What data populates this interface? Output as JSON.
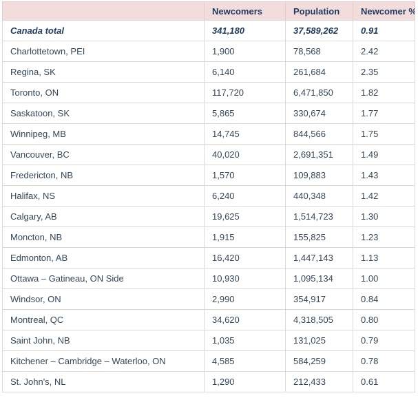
{
  "colors": {
    "header_bg": "#f3dcdc",
    "header_text": "#1e3a5f",
    "body_text": "#33475b",
    "total_row_text": "#1e3a5f",
    "border": "#d9d9d9",
    "row_bg": "#ffffff"
  },
  "chart_data": {
    "type": "table",
    "title": "",
    "columns": [
      "",
      "Newcomers",
      "Population",
      "Newcomer %"
    ],
    "rows": [
      {
        "cells": [
          "Canada total",
          "341,180",
          "37,589,262",
          "0.91"
        ],
        "emphasis": true
      },
      {
        "cells": [
          "Charlottetown, PEI",
          "1,900",
          "78,568",
          "2.42"
        ],
        "emphasis": false
      },
      {
        "cells": [
          "Regina, SK",
          "6,140",
          "261,684",
          "2.35"
        ],
        "emphasis": false
      },
      {
        "cells": [
          "Toronto, ON",
          "117,720",
          "6,471,850",
          "1.82"
        ],
        "emphasis": false
      },
      {
        "cells": [
          "Saskatoon, SK",
          "5,865",
          "330,674",
          "1.77"
        ],
        "emphasis": false
      },
      {
        "cells": [
          "Winnipeg, MB",
          "14,745",
          "844,566",
          "1.75"
        ],
        "emphasis": false
      },
      {
        "cells": [
          "Vancouver, BC",
          "40,020",
          "2,691,351",
          "1.49"
        ],
        "emphasis": false
      },
      {
        "cells": [
          "Fredericton, NB",
          "1,570",
          "109,883",
          "1.43"
        ],
        "emphasis": false
      },
      {
        "cells": [
          "Halifax, NS",
          "6,240",
          "440,348",
          "1.42"
        ],
        "emphasis": false
      },
      {
        "cells": [
          "Calgary, AB",
          "19,625",
          "1,514,723",
          "1.30"
        ],
        "emphasis": false
      },
      {
        "cells": [
          "Moncton, NB",
          "1,915",
          "155,825",
          "1.23"
        ],
        "emphasis": false
      },
      {
        "cells": [
          "Edmonton, AB",
          "16,420",
          "1,447,143",
          "1.13"
        ],
        "emphasis": false
      },
      {
        "cells": [
          "Ottawa – Gatineau, ON Side",
          "10,930",
          "1,095,134",
          "1.00"
        ],
        "emphasis": false
      },
      {
        "cells": [
          "Windsor, ON",
          "2,990",
          "354,917",
          "0.84"
        ],
        "emphasis": false
      },
      {
        "cells": [
          "Montreal, QC",
          "34,620",
          "4,318,505",
          "0.80"
        ],
        "emphasis": false
      },
      {
        "cells": [
          "Saint John, NB",
          "1,035",
          "131,025",
          "0.79"
        ],
        "emphasis": false
      },
      {
        "cells": [
          "Kitchener – Cambridge – Waterloo, ON",
          "4,585",
          "584,259",
          "0.78"
        ],
        "emphasis": false
      },
      {
        "cells": [
          "St. John's, NL",
          "1,290",
          "212,433",
          "0.61"
        ],
        "emphasis": false
      }
    ]
  }
}
